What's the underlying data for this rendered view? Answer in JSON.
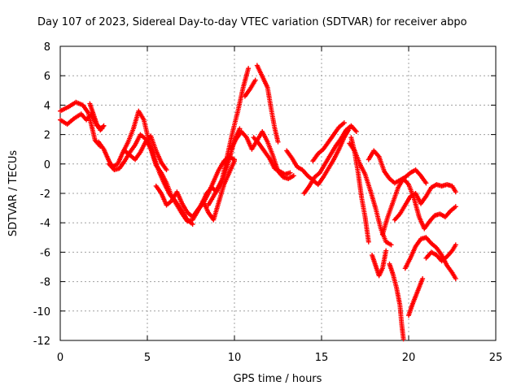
{
  "chart_data": {
    "type": "scatter",
    "title": "Day 107 of 2023, Sidereal Day-to-day VTEC variation (SDTVAR) for receiver abpo",
    "xlabel": "GPS time / hours",
    "ylabel": "SDTVAR / TECUs",
    "xlim": [
      0,
      25
    ],
    "ylim": [
      -12,
      8
    ],
    "xticks": [
      0,
      5,
      10,
      15,
      20,
      25
    ],
    "yticks": [
      -12,
      -10,
      -8,
      -6,
      -4,
      -2,
      0,
      2,
      4,
      6,
      8
    ],
    "grid": true,
    "marker": "plus",
    "color": "#ff0000",
    "series": [
      {
        "x": [
          0.0,
          0.5,
          0.9,
          1.3,
          1.6,
          1.8,
          2.0,
          2.3
        ],
        "y": [
          3.6,
          3.9,
          4.2,
          4.0,
          3.5,
          2.6,
          1.6,
          1.2
        ]
      },
      {
        "x": [
          0.0,
          0.4,
          0.8,
          1.2,
          1.5,
          1.8,
          2.1,
          2.4
        ],
        "y": [
          3.0,
          2.7,
          3.1,
          3.4,
          3.0,
          3.4,
          2.6,
          2.4
        ]
      },
      {
        "x": [
          1.7,
          1.9,
          2.1,
          2.3,
          2.5
        ],
        "y": [
          4.1,
          3.4,
          2.7,
          2.3,
          2.6
        ]
      },
      {
        "x": [
          2.2,
          2.5,
          2.8,
          3.0,
          3.3,
          3.6,
          3.9,
          4.2,
          4.5,
          4.8,
          5.1,
          5.4,
          5.7,
          6.0,
          6.3,
          6.6,
          7.0,
          7.3,
          7.6
        ],
        "y": [
          1.5,
          1.0,
          0.2,
          -0.2,
          0.0,
          0.8,
          1.5,
          2.4,
          3.6,
          3.0,
          1.5,
          0.4,
          -0.6,
          -1.4,
          -2.1,
          -2.5,
          -3.2,
          -3.8,
          -4.1
        ]
      },
      {
        "x": [
          2.8,
          3.1,
          3.4,
          3.7,
          4.0,
          4.3,
          4.6,
          4.9,
          5.2,
          5.5,
          5.8,
          6.1,
          6.4,
          6.7,
          7.0,
          7.3,
          7.6,
          7.9,
          8.2,
          8.5,
          8.8,
          9.1,
          9.4,
          9.7,
          10.0
        ],
        "y": [
          0.0,
          -0.4,
          -0.3,
          0.2,
          0.8,
          1.3,
          2.0,
          1.7,
          1.0,
          -0.1,
          -0.6,
          -1.3,
          -2.2,
          -2.8,
          -3.4,
          -3.9,
          -3.8,
          -3.2,
          -2.5,
          -3.3,
          -3.8,
          -2.6,
          -1.4,
          -0.6,
          0.2
        ]
      },
      {
        "x": [
          3.7,
          4.0,
          4.3,
          4.6,
          4.9,
          5.2,
          5.5,
          5.8,
          6.1
        ],
        "y": [
          0.9,
          0.6,
          0.3,
          0.8,
          1.5,
          1.9,
          0.9,
          0.1,
          -0.4
        ]
      },
      {
        "x": [
          5.5,
          5.8,
          6.1,
          6.4,
          6.7,
          7.0,
          7.3,
          7.6,
          7.9,
          8.2,
          8.5,
          8.8,
          9.1,
          9.4,
          9.7,
          10.0
        ],
        "y": [
          -1.5,
          -2.0,
          -2.8,
          -2.5,
          -1.9,
          -2.7,
          -3.3,
          -3.6,
          -3.1,
          -2.7,
          -2.0,
          -1.2,
          -0.4,
          0.2,
          0.5,
          0.3
        ]
      },
      {
        "x": [
          7.8,
          8.1,
          8.4,
          8.7,
          9.0,
          9.3,
          9.6,
          9.9,
          10.2,
          10.5,
          10.8
        ],
        "y": [
          -3.3,
          -2.8,
          -2.0,
          -1.6,
          -1.9,
          -1.0,
          0.6,
          2.2,
          3.6,
          5.2,
          6.5
        ]
      },
      {
        "x": [
          8.5,
          8.8,
          9.1,
          9.4,
          9.7,
          10.0,
          10.3
        ],
        "y": [
          -2.8,
          -2.2,
          -1.5,
          -0.9,
          0.3,
          1.6,
          2.4
        ]
      },
      {
        "x": [
          9.8,
          10.1,
          10.4,
          10.7,
          11.0,
          11.3,
          11.6,
          11.9,
          12.2,
          12.5,
          12.8,
          13.1,
          13.4
        ],
        "y": [
          1.0,
          1.7,
          2.2,
          1.8,
          1.0,
          1.6,
          2.2,
          1.5,
          0.6,
          -0.5,
          -0.9,
          -1.0,
          -0.8
        ]
      },
      {
        "x": [
          10.6,
          10.9,
          11.2
        ],
        "y": [
          4.6,
          5.1,
          5.7
        ]
      },
      {
        "x": [
          11.3,
          11.5,
          11.7,
          11.9,
          12.1,
          12.3,
          12.5
        ],
        "y": [
          6.7,
          6.2,
          5.7,
          5.2,
          3.8,
          2.5,
          1.5
        ]
      },
      {
        "x": [
          11.1,
          11.4,
          11.7,
          12.0,
          12.3,
          12.6,
          12.9,
          13.2
        ],
        "y": [
          1.8,
          1.4,
          0.9,
          0.4,
          -0.3,
          -0.5,
          -0.7,
          -0.6
        ]
      },
      {
        "x": [
          13.0,
          13.3,
          13.6,
          13.9,
          14.2,
          14.5,
          14.8,
          15.1,
          15.4,
          15.7,
          16.0,
          16.3,
          16.6
        ],
        "y": [
          0.9,
          0.4,
          -0.2,
          -0.4,
          -0.8,
          -1.1,
          -1.4,
          -0.9,
          -0.3,
          0.3,
          1.0,
          1.8,
          2.4
        ]
      },
      {
        "x": [
          14.0,
          14.3,
          14.6,
          14.9,
          15.2,
          15.5,
          15.8,
          16.1,
          16.4,
          16.7,
          17.0
        ],
        "y": [
          -2.0,
          -1.5,
          -0.9,
          -0.6,
          0.0,
          0.6,
          1.2,
          1.7,
          2.3,
          2.6,
          2.2
        ]
      },
      {
        "x": [
          14.5,
          14.8,
          15.1,
          15.4,
          15.7,
          16.0,
          16.3
        ],
        "y": [
          0.2,
          0.7,
          1.0,
          1.5,
          2.0,
          2.5,
          2.8
        ]
      },
      {
        "x": [
          16.7,
          16.9,
          17.1,
          17.3,
          17.5,
          17.7
        ],
        "y": [
          1.8,
          0.8,
          -0.6,
          -2.3,
          -3.6,
          -5.3
        ]
      },
      {
        "x": [
          16.6,
          16.9,
          17.2,
          17.5,
          17.8,
          18.1,
          18.4,
          18.7,
          19.0
        ],
        "y": [
          1.4,
          0.9,
          0.0,
          -0.7,
          -1.8,
          -3.0,
          -4.4,
          -5.3,
          -5.5
        ]
      },
      {
        "x": [
          17.7,
          18.0,
          18.3,
          18.6,
          18.9,
          19.2,
          19.5,
          19.8,
          20.1,
          20.4,
          20.7,
          21.0
        ],
        "y": [
          0.3,
          0.9,
          0.5,
          -0.5,
          -1.0,
          -1.3,
          -1.1,
          -0.9,
          -0.6,
          -0.4,
          -0.8,
          -1.3
        ]
      },
      {
        "x": [
          17.9,
          18.1,
          18.3,
          18.5,
          18.7
        ],
        "y": [
          -6.2,
          -6.9,
          -7.6,
          -7.1,
          -5.9
        ]
      },
      {
        "x": [
          18.5,
          18.8,
          19.1,
          19.4,
          19.7,
          20.0,
          20.3,
          20.6,
          20.9,
          21.2,
          21.5,
          21.8,
          22.1,
          22.4,
          22.7
        ],
        "y": [
          -4.8,
          -3.6,
          -2.6,
          -1.6,
          -1.0,
          -1.4,
          -2.3,
          -3.6,
          -4.4,
          -3.9,
          -3.5,
          -3.4,
          -3.6,
          -3.2,
          -2.9
        ]
      },
      {
        "x": [
          19.2,
          19.5,
          19.8,
          20.1,
          20.4,
          20.7,
          21.0,
          21.3,
          21.6,
          21.9,
          22.2,
          22.5,
          22.7
        ],
        "y": [
          -3.8,
          -3.4,
          -2.8,
          -2.2,
          -2.0,
          -2.7,
          -2.2,
          -1.6,
          -1.4,
          -1.5,
          -1.4,
          -1.5,
          -1.9
        ]
      },
      {
        "x": [
          18.9,
          19.1,
          19.3,
          19.5,
          19.6,
          19.7
        ],
        "y": [
          -6.8,
          -7.5,
          -8.4,
          -9.6,
          -10.9,
          -11.9
        ]
      },
      {
        "x": [
          19.8,
          20.1,
          20.4,
          20.7,
          21.0,
          21.3,
          21.6,
          21.9,
          22.2,
          22.5,
          22.7
        ],
        "y": [
          -7.1,
          -6.4,
          -5.6,
          -5.1,
          -5.0,
          -5.4,
          -5.7,
          -6.2,
          -6.9,
          -7.4,
          -7.8
        ]
      },
      {
        "x": [
          20.0,
          20.2,
          20.4,
          20.6,
          20.8
        ],
        "y": [
          -10.3,
          -9.6,
          -9.0,
          -8.4,
          -7.8
        ]
      },
      {
        "x": [
          21.0,
          21.3,
          21.6,
          21.9,
          22.2,
          22.5,
          22.7
        ],
        "y": [
          -6.4,
          -6.0,
          -6.2,
          -6.6,
          -6.3,
          -5.9,
          -5.5
        ]
      }
    ]
  }
}
